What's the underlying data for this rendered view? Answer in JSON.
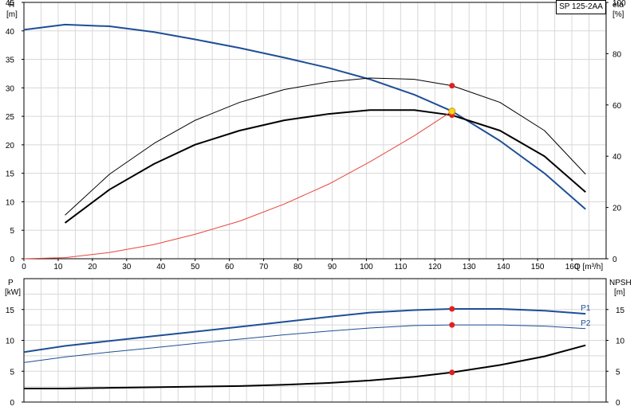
{
  "model": "SP 125-2AA",
  "chart_data": [
    {
      "type": "line",
      "panel": "head-efficiency",
      "title": "",
      "xlabel": "Q [m³/h]",
      "xlim": [
        0,
        170
      ],
      "x_ticks": [
        0,
        10,
        20,
        30,
        40,
        50,
        60,
        70,
        80,
        90,
        100,
        110,
        120,
        130,
        140,
        150,
        160
      ],
      "y_left": {
        "label_name": "H",
        "label_unit": "[m]",
        "lim": [
          0,
          45
        ],
        "ticks": [
          0,
          5,
          10,
          15,
          20,
          25,
          30,
          35,
          40,
          45
        ]
      },
      "y_right": {
        "label_name": "eta",
        "label_unit": "[%]",
        "lim": [
          0,
          100
        ],
        "ticks": [
          0,
          20,
          40,
          60,
          80,
          100
        ]
      },
      "grid": true,
      "series": [
        {
          "key": "H",
          "axis": "left",
          "color": "#1e4f96",
          "width": 2,
          "x": [
            0,
            12,
            25,
            38,
            50,
            63,
            76,
            89,
            101,
            114,
            125,
            139,
            152,
            164
          ],
          "y": [
            40.2,
            41.1,
            40.8,
            39.8,
            38.5,
            37.0,
            35.3,
            33.5,
            31.5,
            28.8,
            25.9,
            20.7,
            15.0,
            8.7
          ]
        },
        {
          "key": "eta_upper",
          "axis": "right",
          "color": "#000000",
          "width": 1,
          "x": [
            12,
            25,
            38,
            50,
            63,
            76,
            89,
            101,
            114,
            125,
            139,
            152,
            164
          ],
          "y": [
            17,
            33,
            45,
            54,
            61,
            66,
            69,
            70.5,
            70,
            67.5,
            61,
            50,
            33
          ]
        },
        {
          "key": "eta_lower",
          "axis": "right",
          "color": "#000000",
          "width": 2,
          "x": [
            12,
            25,
            38,
            50,
            63,
            76,
            89,
            101,
            114,
            125,
            139,
            152,
            164
          ],
          "y": [
            14,
            27,
            37,
            44.5,
            50,
            54,
            56.5,
            58,
            58,
            56,
            50,
            40,
            26
          ]
        },
        {
          "key": "system_curve",
          "axis": "left",
          "color": "#e8443a",
          "width": 1,
          "x": [
            0,
            12,
            25,
            38,
            50,
            63,
            76,
            89,
            101,
            114,
            125
          ],
          "y": [
            0,
            0.2,
            1.1,
            2.5,
            4.3,
            6.6,
            9.6,
            13.1,
            17.0,
            21.6,
            25.9
          ]
        }
      ],
      "duty_point": {
        "x": 125,
        "y": 25.9,
        "color": "#ffd21f"
      },
      "markers": [
        {
          "axis": "right",
          "x": 125,
          "y": 67.5,
          "color": "#e02020"
        },
        {
          "axis": "right",
          "x": 125,
          "y": 56,
          "color": "#e02020"
        }
      ]
    },
    {
      "type": "line",
      "panel": "power-npsh",
      "title": "",
      "xlim": [
        0,
        170
      ],
      "y_left": {
        "label_name": "P",
        "label_unit": "[kW]",
        "lim": [
          0,
          20
        ],
        "ticks": [
          0,
          5,
          10,
          15
        ]
      },
      "y_right": {
        "label_name": "NPSH",
        "label_unit": "[m]",
        "lim": [
          0,
          20
        ],
        "ticks": [
          0,
          5,
          10,
          15
        ]
      },
      "grid": true,
      "series": [
        {
          "key": "P1",
          "name": "P1",
          "axis": "left",
          "color": "#1e4f96",
          "width": 2,
          "x": [
            0,
            12,
            25,
            38,
            50,
            63,
            76,
            89,
            101,
            114,
            125,
            139,
            152,
            164
          ],
          "y": [
            8.1,
            9.1,
            9.9,
            10.7,
            11.4,
            12.2,
            13.0,
            13.8,
            14.5,
            14.9,
            15.1,
            15.1,
            14.8,
            14.3
          ]
        },
        {
          "key": "P2",
          "name": "P2",
          "axis": "left",
          "color": "#1e4f96",
          "width": 1,
          "x": [
            0,
            12,
            25,
            38,
            50,
            63,
            76,
            89,
            101,
            114,
            125,
            139,
            152,
            164
          ],
          "y": [
            6.4,
            7.3,
            8.1,
            8.8,
            9.5,
            10.2,
            10.9,
            11.5,
            12.0,
            12.4,
            12.5,
            12.5,
            12.3,
            11.9
          ]
        },
        {
          "key": "NPSH",
          "axis": "right",
          "color": "#000000",
          "width": 2,
          "x": [
            0,
            12,
            25,
            38,
            50,
            63,
            76,
            89,
            101,
            114,
            125,
            139,
            152,
            164
          ],
          "y": [
            2.2,
            2.2,
            2.3,
            2.4,
            2.5,
            2.6,
            2.8,
            3.1,
            3.5,
            4.1,
            4.8,
            6.0,
            7.4,
            9.2
          ]
        }
      ],
      "markers": [
        {
          "axis": "left",
          "x": 125,
          "y": 15.1,
          "color": "#e02020"
        },
        {
          "axis": "left",
          "x": 125,
          "y": 12.5,
          "color": "#e02020"
        },
        {
          "axis": "right",
          "x": 125,
          "y": 4.8,
          "color": "#e02020"
        }
      ]
    }
  ]
}
